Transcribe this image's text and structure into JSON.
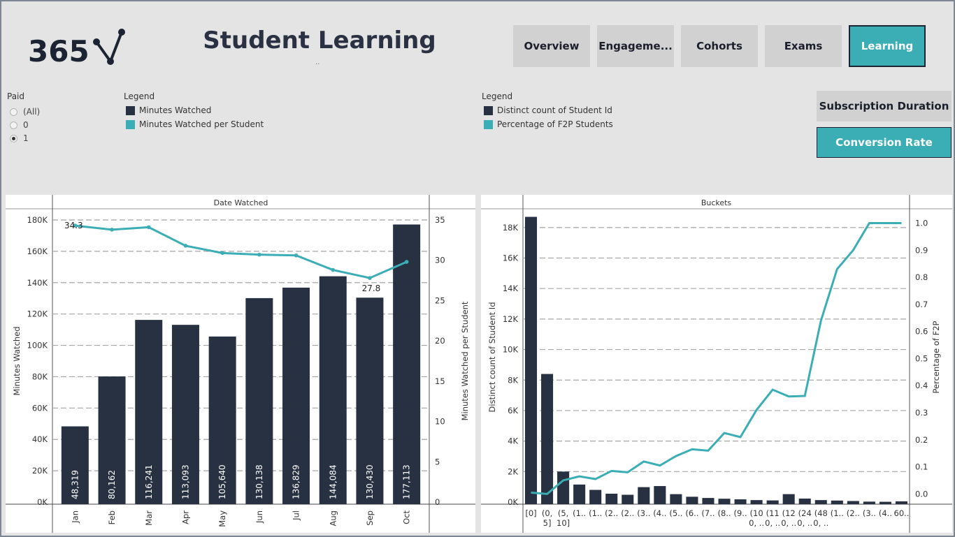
{
  "header": {
    "logo_text": "365",
    "title": "Student Learning",
    "title_dots": "..",
    "nav": [
      "Overview",
      "Engageme...",
      "Cohorts",
      "Exams",
      "Learning"
    ],
    "active_nav": 4
  },
  "filters": {
    "paid_title": "Paid",
    "paid_options": [
      "(All)",
      "0",
      "1"
    ],
    "paid_selected": 2
  },
  "legend1": {
    "title": "Legend",
    "items": [
      {
        "label": "Minutes Watched",
        "color": "#283142"
      },
      {
        "label": "Minutes Watched per Student",
        "color": "#3aadb5"
      }
    ]
  },
  "legend2": {
    "title": "Legend",
    "items": [
      {
        "label": "Distinct count of Student Id",
        "color": "#283142"
      },
      {
        "label": "Percentage of F2P Students",
        "color": "#3aadb5"
      }
    ]
  },
  "side_buttons": [
    "Subscription Duration",
    "Conversion Rate"
  ],
  "side_active": 1,
  "chart_data": [
    {
      "type": "bar",
      "header": "Date Watched",
      "categories": [
        "Jan",
        "Feb",
        "Mar",
        "Apr",
        "May",
        "Jun",
        "Jul",
        "Aug",
        "Sep",
        "Oct"
      ],
      "series": [
        {
          "name": "Minutes Watched",
          "type": "bar",
          "axis": "left",
          "values": [
            48319,
            80162,
            116241,
            113093,
            105640,
            130138,
            136829,
            144084,
            130430,
            177113
          ],
          "value_labels": [
            "48,319",
            "80,162",
            "116,241",
            "113,093",
            "105,640",
            "130,138",
            "136,829",
            "144,084",
            "130,430",
            "177,113"
          ]
        },
        {
          "name": "Minutes Watched per Student",
          "type": "line",
          "axis": "right",
          "values": [
            34.3,
            33.8,
            34.1,
            31.8,
            30.9,
            30.7,
            30.6,
            28.8,
            27.8,
            29.8
          ]
        }
      ],
      "ylabel": "Minutes Watched",
      "y2label": "Minutes Watched per Student",
      "ylim": [
        0,
        180000
      ],
      "y2lim": [
        0,
        35
      ],
      "yticks": [
        0,
        20000,
        40000,
        60000,
        80000,
        100000,
        120000,
        140000,
        160000,
        180000
      ],
      "ytick_labels": [
        "0K",
        "20K",
        "40K",
        "60K",
        "80K",
        "100K",
        "120K",
        "140K",
        "160K",
        "180K"
      ],
      "y2ticks": [
        0,
        5,
        10,
        15,
        20,
        25,
        30,
        35
      ],
      "line_annotations": [
        {
          "index": 0,
          "text": "34.3"
        },
        {
          "index": 8,
          "text": "27.8"
        }
      ],
      "grid": true
    },
    {
      "type": "bar",
      "header": "Buckets",
      "categories": [
        "[0]",
        "(0,\n5]",
        "(5,\n10]",
        "(1..",
        "(1..",
        "(2..",
        "(2..",
        "(3..",
        "(4..",
        "(5..",
        "(6..",
        "(7..",
        "(8..",
        "(9..",
        "(10\n0, ..",
        "(11\n0, ..",
        "(12\n0, ..",
        "(24\n0, ..",
        "(48\n0, ..",
        "(1..",
        "(2..",
        "(3..",
        "(4..",
        "60.."
      ],
      "series": [
        {
          "name": "Distinct count of Student Id",
          "type": "bar",
          "axis": "left",
          "values": [
            18700,
            8400,
            2000,
            1150,
            800,
            550,
            480,
            980,
            1050,
            520,
            350,
            270,
            220,
            180,
            130,
            110,
            520,
            230,
            130,
            100,
            70,
            30,
            20,
            50
          ]
        },
        {
          "name": "Percentage of F2P Students",
          "type": "line",
          "axis": "right",
          "values": [
            0.005,
            0.0,
            0.05,
            0.065,
            0.055,
            0.085,
            0.08,
            0.12,
            0.105,
            0.14,
            0.165,
            0.16,
            0.225,
            0.21,
            0.31,
            0.385,
            0.36,
            0.362,
            0.64,
            0.83,
            0.9,
            1.0,
            1.0,
            1.0
          ]
        }
      ],
      "ylabel": "Distinct count of Student Id",
      "y2label": "Percentage of F2P",
      "ylim": [
        0,
        19000
      ],
      "y2lim": [
        -0.03,
        1.04
      ],
      "yticks": [
        0,
        2000,
        4000,
        6000,
        8000,
        10000,
        12000,
        14000,
        16000,
        18000
      ],
      "ytick_labels": [
        "0K",
        "2K",
        "4K",
        "6K",
        "8K",
        "10K",
        "12K",
        "14K",
        "16K",
        "18K"
      ],
      "y2ticks": [
        0.0,
        0.1,
        0.2,
        0.3,
        0.4,
        0.5,
        0.6,
        0.7,
        0.8,
        0.9,
        1.0
      ],
      "y2tick_labels": [
        "0.0",
        "0.1",
        "0.2",
        "0.3",
        "0.4",
        "0.5",
        "0.6",
        "0.7",
        "0.8",
        "0.9",
        "1.0"
      ],
      "grid": true
    }
  ]
}
